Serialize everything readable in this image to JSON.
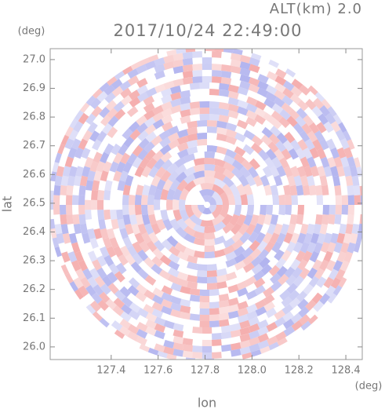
{
  "chart_data": {
    "type": "radar-map",
    "title": "2017/10/24 22:49:00",
    "subtitle": "ALT(km) 2.0",
    "xlabel": "lon",
    "ylabel": "lat",
    "xunit": "(deg)",
    "yunit": "(deg)",
    "xlim": [
      127.14,
      128.47
    ],
    "ylim": [
      25.956,
      27.038
    ],
    "xticks": [
      127.4,
      127.6,
      127.8,
      {
        "value": 128.0,
        "label": "128.0"
      },
      128.2,
      128.4
    ],
    "yticks": [
      {
        "value": 26.0,
        "label": "26.0"
      },
      26.1,
      26.2,
      26.3,
      26.4,
      26.5,
      26.6,
      26.7,
      26.8,
      26.9,
      {
        "value": 27.0,
        "label": "27.0"
      }
    ],
    "colors": [
      "#f4a8a8",
      "#aeb0ee"
    ]
  }
}
